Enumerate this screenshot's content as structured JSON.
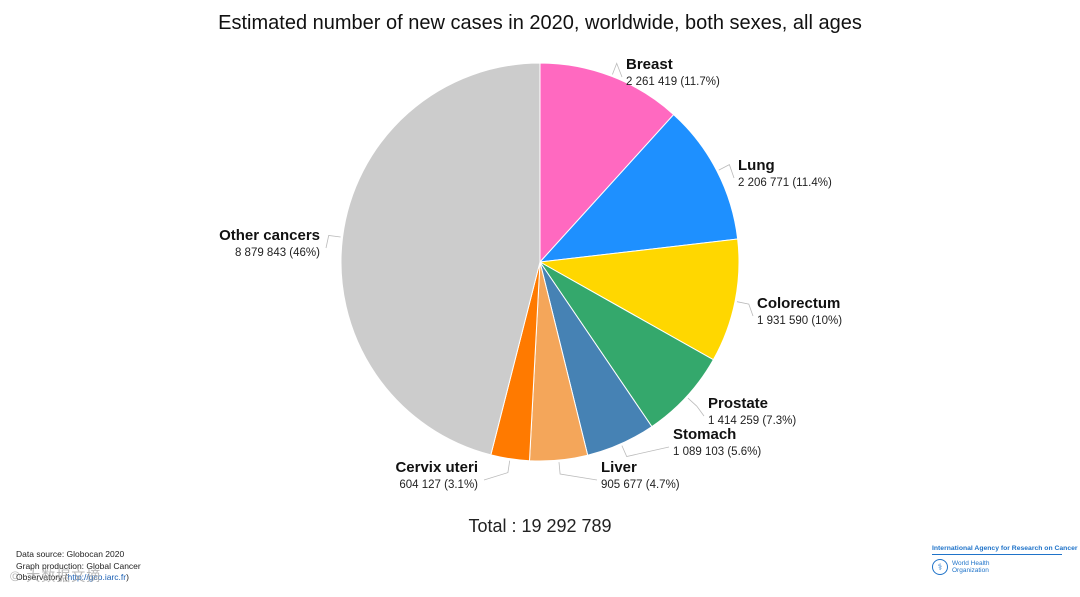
{
  "chart_data": {
    "type": "pie",
    "title": "Estimated number of new cases in 2020, worldwide, both sexes, all ages",
    "slices": [
      {
        "name": "Breast",
        "value": 2261419,
        "label": "2 261 419 (11.7%)",
        "color": "#ff69c0"
      },
      {
        "name": "Lung",
        "value": 2206771,
        "label": "2 206 771 (11.4%)",
        "color": "#1e90ff"
      },
      {
        "name": "Colorectum",
        "value": 1931590,
        "label": "1 931 590 (10%)",
        "color": "#ffd700"
      },
      {
        "name": "Prostate",
        "value": 1414259,
        "label": "1 414 259 (7.3%)",
        "color": "#34a86c"
      },
      {
        "name": "Stomach",
        "value": 1089103,
        "label": "1 089 103 (5.6%)",
        "color": "#4682b4"
      },
      {
        "name": "Liver",
        "value": 905677,
        "label": "905 677 (4.7%)",
        "color": "#f4a65a"
      },
      {
        "name": "Cervix uteri",
        "value": 604127,
        "label": "604 127 (3.1%)",
        "color": "#ff7a00"
      },
      {
        "name": "Other cancers",
        "value": 8879843,
        "label": "8 879 843 (46%)",
        "color": "#cccccc"
      }
    ],
    "total_label": "Total : 19 292 789",
    "start_angle": "12 o'clock",
    "direction": "clockwise"
  },
  "footer": {
    "source_line1": "Data source: Globocan 2020",
    "source_line2": "Graph production: Global Cancer",
    "source_line3_prefix": "Observatory (",
    "source_line3_link": "http://gco.iarc.fr",
    "source_line3_suffix": ")",
    "watermark": "© 大数据文摘"
  },
  "logo": {
    "iarc_text": "International Agency for Research on Cancer",
    "who_line1": "World Health",
    "who_line2": "Organization"
  }
}
